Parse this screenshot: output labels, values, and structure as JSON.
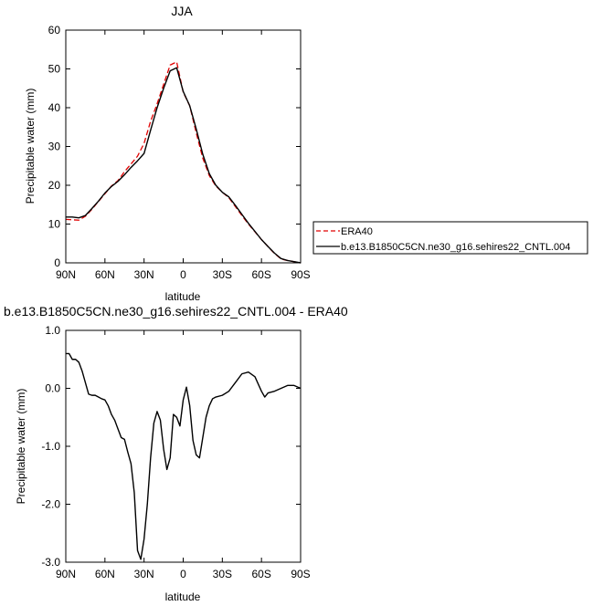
{
  "chart_data": [
    {
      "type": "line",
      "title": "JJA",
      "xlabel": "latitude",
      "ylabel": "Precipitable water (mm)",
      "xlim": [
        90,
        -90
      ],
      "ylim": [
        0,
        60
      ],
      "x_tick_values": [
        90,
        60,
        30,
        0,
        -30,
        -60,
        -90
      ],
      "x_tick_labels": [
        "90N",
        "60N",
        "30N",
        "0",
        "30S",
        "60S",
        "90S"
      ],
      "y_tick_values": [
        0,
        10,
        20,
        30,
        40,
        50,
        60
      ],
      "y_tick_labels": [
        "0",
        "10",
        "20",
        "30",
        "40",
        "50",
        "60"
      ],
      "grid": false,
      "legend_position": "right",
      "colors": {
        "ERA40": "#e00000",
        "model": "#000000"
      },
      "series": [
        {
          "name": "ERA40",
          "style": "dashed",
          "x": [
            90,
            85,
            80,
            75,
            70,
            65,
            60,
            55,
            50,
            45,
            40,
            35,
            30,
            25,
            20,
            15,
            10,
            5,
            0,
            -5,
            -10,
            -15,
            -20,
            -25,
            -30,
            -35,
            -40,
            -45,
            -50,
            -55,
            -60,
            -65,
            -70,
            -75,
            -80,
            -85,
            -90
          ],
          "values": [
            11.2,
            11.1,
            11.0,
            12.0,
            13.8,
            15.8,
            17.8,
            19.8,
            21.2,
            23.5,
            25.5,
            27.5,
            30.8,
            36.5,
            41.0,
            46.0,
            51.0,
            51.8,
            44.0,
            40.5,
            33.5,
            27.0,
            22.5,
            19.8,
            18.2,
            16.8,
            14.5,
            12.2,
            10.0,
            8.0,
            6.0,
            4.2,
            2.4,
            1.0,
            0.6,
            0.3,
            0.0
          ]
        },
        {
          "name": "b.e13.B1850C5CN.ne30_g16.sehires22_CNTL.004",
          "style": "solid",
          "x": [
            90,
            85,
            80,
            75,
            70,
            65,
            60,
            55,
            50,
            45,
            40,
            35,
            30,
            25,
            20,
            15,
            10,
            5,
            0,
            -5,
            -10,
            -15,
            -20,
            -25,
            -30,
            -35,
            -40,
            -45,
            -50,
            -55,
            -60,
            -65,
            -70,
            -75,
            -80,
            -85,
            -90
          ],
          "values": [
            11.8,
            11.8,
            11.6,
            12.2,
            14.0,
            15.9,
            18.0,
            19.7,
            21.0,
            22.7,
            24.6,
            26.3,
            28.2,
            34.2,
            40.0,
            45.0,
            49.5,
            50.3,
            44.2,
            40.5,
            34.5,
            28.0,
            23.0,
            20.0,
            18.2,
            17.0,
            14.8,
            12.5,
            10.2,
            8.1,
            6.0,
            4.2,
            2.5,
            1.1,
            0.6,
            0.3,
            0.0
          ]
        }
      ]
    },
    {
      "type": "line",
      "title": "b.e13.B1850C5CN.ne30_g16.sehires22_CNTL.004 - ERA40",
      "xlabel": "latitude",
      "ylabel": "Precipitable water (mm)",
      "xlim": [
        90,
        -90
      ],
      "ylim": [
        -3.0,
        1.0
      ],
      "x_tick_values": [
        90,
        60,
        30,
        0,
        -30,
        -60,
        -90
      ],
      "x_tick_labels": [
        "90N",
        "60N",
        "30N",
        "0",
        "30S",
        "60S",
        "90S"
      ],
      "y_tick_values": [
        -3,
        -2,
        -1,
        0,
        1
      ],
      "y_tick_labels": [
        "-3.0",
        "-2.0",
        "-1.0",
        "0.0",
        "1.0"
      ],
      "grid": false,
      "series": [
        {
          "style": "solid",
          "x": [
            90,
            87.5,
            85,
            82.5,
            80,
            77.5,
            75,
            72.5,
            70,
            67.5,
            65,
            62.5,
            60,
            57.5,
            55,
            52.5,
            50,
            47.5,
            45,
            42.5,
            40,
            37.5,
            35,
            32.5,
            30,
            27.5,
            25,
            22.5,
            20,
            17.5,
            15,
            12.5,
            10,
            7.5,
            5,
            2.5,
            0,
            -2.5,
            -5,
            -7.5,
            -10,
            -12.5,
            -15,
            -17.5,
            -20,
            -22.5,
            -25,
            -30,
            -35,
            -40,
            -45,
            -50,
            -55,
            -60,
            -62.5,
            -65,
            -70,
            -75,
            -80,
            -85,
            -90
          ],
          "values": [
            0.6,
            0.6,
            0.5,
            0.5,
            0.45,
            0.3,
            0.1,
            -0.1,
            -0.12,
            -0.12,
            -0.15,
            -0.18,
            -0.2,
            -0.3,
            -0.45,
            -0.55,
            -0.7,
            -0.85,
            -0.88,
            -1.1,
            -1.3,
            -1.8,
            -2.8,
            -2.95,
            -2.6,
            -2.0,
            -1.2,
            -0.6,
            -0.4,
            -0.55,
            -1.05,
            -1.4,
            -1.2,
            -0.45,
            -0.5,
            -0.65,
            -0.2,
            0.02,
            -0.3,
            -0.9,
            -1.15,
            -1.2,
            -0.85,
            -0.5,
            -0.3,
            -0.18,
            -0.15,
            -0.12,
            -0.05,
            0.1,
            0.25,
            0.28,
            0.2,
            -0.05,
            -0.15,
            -0.08,
            -0.05,
            0.0,
            0.05,
            0.05,
            0.0
          ]
        }
      ]
    }
  ]
}
